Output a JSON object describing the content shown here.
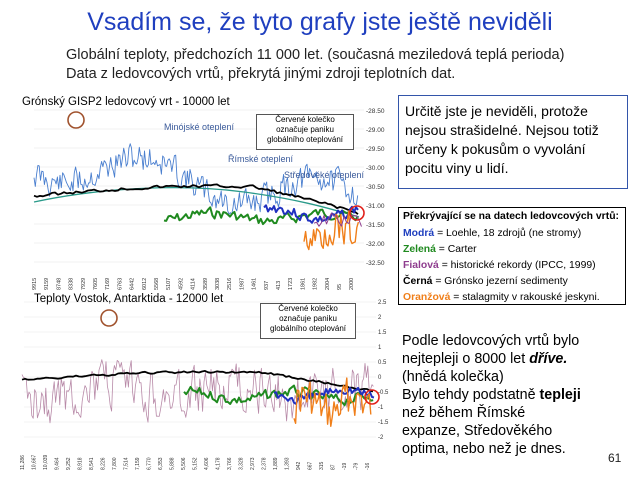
{
  "slide": {
    "title": "Vsadím se, že tyto grafy jste ještě neviděli",
    "subtitle_line1": "Globální teploty, předchozích 11 000 let. (současná meziledová teplá perioda)",
    "subtitle_line2": "Data z ledovcových vrtů, překrytá jinými zdroji teplotních dat.",
    "page_number": "61"
  },
  "top_chart": {
    "title": "Grónský GISP2 ledovcový vrt - 10000 let",
    "annotation_line1": "Červené kolečko",
    "annotation_line2": "označuje paniku",
    "annotation_line3": "globálního oteplování",
    "label_minoan": "Minójské oteplení",
    "label_roman": "Římské oteplení",
    "label_medieval": "Středověké oteplení",
    "y_ticks": [
      "-28.50",
      "-29.00",
      "-29.50",
      "-30.00",
      "-30.50",
      "-31.00",
      "-31.50",
      "-32.00",
      "-32.50"
    ],
    "x_ticks": [
      "9915",
      "9159",
      "8748",
      "8338",
      "7929",
      "7605",
      "7169",
      "6763",
      "6442",
      "6012",
      "5568",
      "5107",
      "4592",
      "4114",
      "3589",
      "3038",
      "2516",
      "1987",
      "1461",
      "937",
      "413",
      "1723",
      "1861",
      "1982",
      "2004",
      "95",
      "2000"
    ]
  },
  "bottom_chart": {
    "title": "Teploty Vostok, Antarktida - 12000 let",
    "annotation_line1": "Červené kolečko",
    "annotation_line2": "označuje paniku",
    "annotation_line3": "globálního oteplování",
    "y_ticks": [
      "2.5",
      "2",
      "1.5",
      "1",
      "0.5",
      "0",
      "-0.5",
      "-1",
      "-1.5",
      "-2"
    ],
    "x_ticks": [
      "11,286",
      "10,667",
      "10,039",
      "9,464",
      "9,252",
      "8,918",
      "8,541",
      "8,226",
      "7,800",
      "7,514",
      "7,159",
      "6,770",
      "6,353",
      "5,888",
      "5,506",
      "5,152",
      "4,606",
      "4,178",
      "3,766",
      "3,328",
      "2,973",
      "2,378",
      "1,889",
      "1,393",
      "942",
      "667",
      "315",
      "87",
      "-19",
      "-79",
      "-16"
    ]
  },
  "top_right_box": {
    "text": "Určitě jste je neviděli, protože nejsou strašidelné. Nejsou totiž určeny k pokusům o vyvolání pocitu viny u lidí."
  },
  "legend_box": {
    "heading": "Překrývající se na datech ledovcových vrtů:",
    "blue_name": "Modrá",
    "blue_text": " = Loehle, 18 zdrojů (ne stromy)",
    "green_name": "Zelená",
    "green_text": " = Carter",
    "purple_name": "Fialová",
    "purple_text": " = historické rekordy (IPCC, 1999)",
    "black_name": "Černá",
    "black_text": " = Grónsko jezerní sedimenty",
    "orange_name": "Oranžová",
    "orange_text": " = stalagmity v rakouské jeskyni.",
    "colors": {
      "blue": "#1f3fbf",
      "green": "#1f8a1f",
      "purple": "#8e3c8e",
      "black": "#000000",
      "orange": "#f07f1a"
    }
  },
  "note": {
    "line1": "Podle ledovcových vrtů bylo",
    "line2_a": "nejtepleji o 8000 let ",
    "line2_b": "dříve.",
    "line3": "(hnědá kolečka)",
    "line4": "Bylo tehdy podstatně ",
    "line4_b": "tepleji",
    "line5": "než během Římské",
    "line6": "expanze, Středověkého",
    "line7": "optima, nebo než je dnes."
  }
}
